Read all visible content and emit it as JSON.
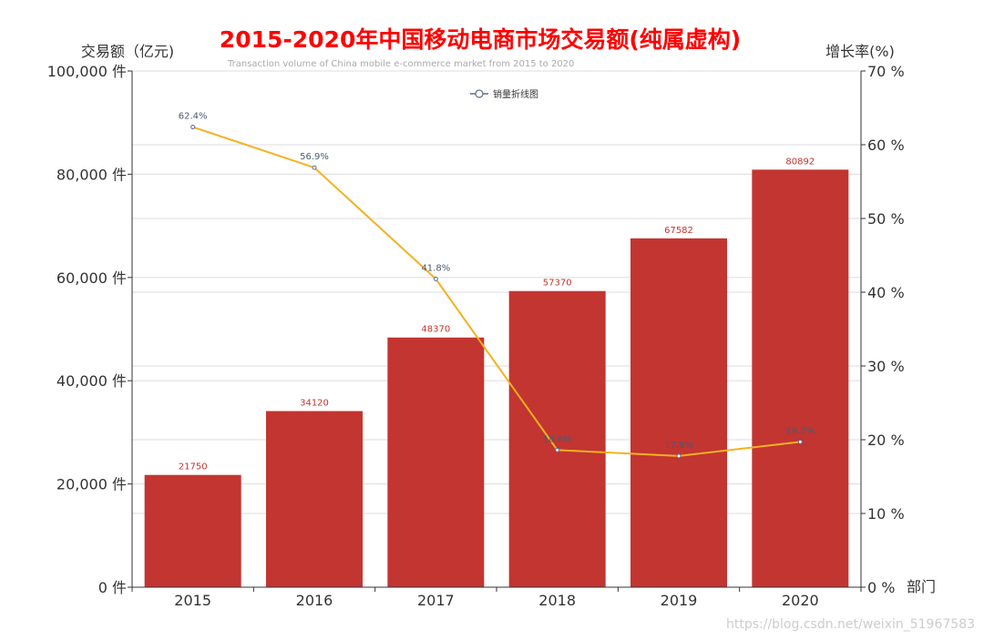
{
  "colors": {
    "bar": "#c23531",
    "line": "#f5b120",
    "text_dark": "#333333",
    "subtitle": "#aaaaaa",
    "title": "#ff0000",
    "grid": "#dddddd",
    "watermark": "#cccccc"
  },
  "watermark": "https://blog.csdn.net/weixin_51967583",
  "chart_data": {
    "type": "bar",
    "title": "2015-2020年中国移动电商市场交易额(纯属虚构)",
    "subtitle": "Transaction volume of China mobile e-commerce market from 2015 to 2020",
    "categories": [
      "2015",
      "2016",
      "2017",
      "2018",
      "2019",
      "2020"
    ],
    "xlabel": "部门",
    "ylabel": "交易额（亿元)",
    "y2label": "增长率(%)",
    "ylim": [
      0,
      100000
    ],
    "y2lim": [
      0,
      70
    ],
    "yticks": [
      "0 件",
      "20,000 件",
      "40,000 件",
      "60,000 件",
      "80,000 件",
      "100,000 件"
    ],
    "y2ticks": [
      "0 %",
      "10 %",
      "20 %",
      "30 %",
      "40 %",
      "50 %",
      "60 %",
      "70 %"
    ],
    "legend": {
      "label": "销量折线图",
      "position": "top"
    },
    "series": [
      {
        "name": "交易额",
        "type": "bar",
        "axis": "left",
        "values": [
          21750,
          34120,
          48370,
          57370,
          67582,
          80892
        ],
        "labels": [
          "21750",
          "34120",
          "48370",
          "57370",
          "67582",
          "80892"
        ]
      },
      {
        "name": "销量折线图",
        "type": "line",
        "axis": "right",
        "values": [
          62.4,
          56.9,
          41.8,
          18.6,
          17.8,
          19.7
        ],
        "labels": [
          "62.4%",
          "56.9%",
          "41.8%",
          "18.6%",
          "17.8%",
          "19.7%"
        ]
      }
    ]
  }
}
